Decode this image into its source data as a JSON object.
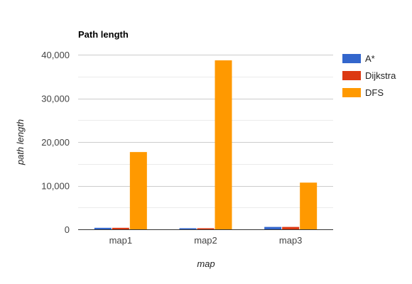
{
  "chart_data": {
    "type": "bar",
    "title": "Path length",
    "xlabel": "map",
    "ylabel": "path length",
    "categories": [
      "map1",
      "map2",
      "map3"
    ],
    "ylim": [
      0,
      40000
    ],
    "yticks": [
      0,
      10000,
      20000,
      30000,
      40000
    ],
    "ytick_labels": [
      "0",
      "10,000",
      "20,000",
      "30,000",
      "40,000"
    ],
    "grid": true,
    "legend_position": "right",
    "series": [
      {
        "name": "A*",
        "color": "#3366cc",
        "values": [
          350,
          250,
          550
        ]
      },
      {
        "name": "Dijkstra",
        "color": "#dc3912",
        "values": [
          350,
          250,
          550
        ]
      },
      {
        "name": "DFS",
        "color": "#ff9900",
        "values": [
          17700,
          38700,
          10700
        ]
      }
    ]
  }
}
